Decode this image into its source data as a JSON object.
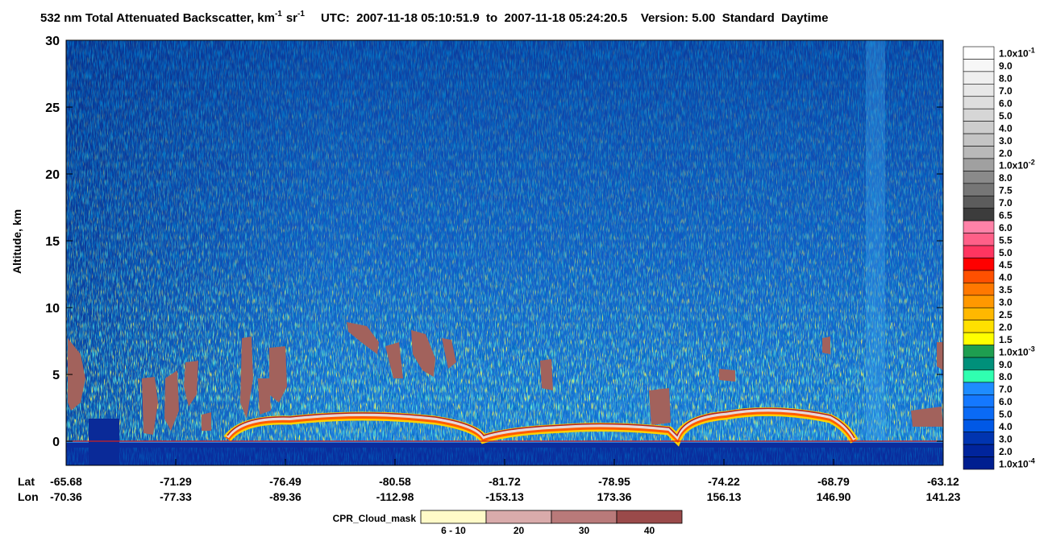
{
  "chart_data": {
    "type": "curtain",
    "title": {
      "text": "532 nm Total Attenuated Backscatter, km",
      "sup1": "-1",
      "sr": "sr",
      "sup2": "-1",
      "info": "UTC:  2007-11-18 05:10:51.9  to  2007-11-18 05:24:20.5    Version: 5.00  Standard  Daytime"
    },
    "ylabel": "Altitude, km",
    "ylim": [
      -1.8,
      30
    ],
    "yticks": [
      0,
      5,
      10,
      15,
      20,
      25,
      30
    ],
    "x_row_labels": [
      "Lat",
      "Lon"
    ],
    "lat": [
      -65.68,
      -71.29,
      -76.49,
      -80.58,
      -81.72,
      -78.95,
      -74.22,
      -68.79,
      -63.12
    ],
    "lon": [
      -70.36,
      -77.33,
      -89.36,
      -112.98,
      -153.13,
      173.36,
      156.13,
      {
        "value": 146.9,
        "label": "146.90"
      },
      141.23
    ],
    "colorbar": {
      "labels": [
        {
          "label": "1.0x10",
          "sup": "-1"
        },
        "9.0",
        "8.0",
        "7.0",
        "6.0",
        "5.0",
        "4.0",
        "3.0",
        "2.0",
        {
          "label": "1.0x10",
          "sup": "-2"
        },
        "8.0",
        "7.5",
        "7.0",
        "6.5",
        "6.0",
        "5.5",
        "5.0",
        "4.5",
        "4.0",
        "3.5",
        "3.0",
        "2.5",
        "2.0",
        "1.5",
        {
          "label": "1.0x10",
          "sup": "-3"
        },
        "9.0",
        "8.0",
        "7.0",
        "6.0",
        "5.0",
        "4.0",
        "3.0",
        "2.0",
        {
          "label": "1.0x10",
          "sup": "-4"
        }
      ],
      "colors": [
        "#ffffff",
        "#f7f7f7",
        "#efefef",
        "#e7e7e7",
        "#dedede",
        "#d6d6d6",
        "#cdcdcd",
        "#c4c4c4",
        "#b9b9b9",
        "#a0a0a0",
        "#8a8a8a",
        "#767676",
        "#5c5c5c",
        "#3c3c3c",
        "#ff82a8",
        "#ff6088",
        "#ff3560",
        "#ff0000",
        "#ff5000",
        "#ff7800",
        "#ff9800",
        "#ffb800",
        "#ffe000",
        "#ffff00",
        "#1e9e50",
        "#00907a",
        "#30ffb0",
        "#1e8cff",
        "#1478ff",
        "#0a6af5",
        "#0058e6",
        "#0034b0",
        "#00249c",
        "#001e90"
      ]
    },
    "cloud_mask": {
      "title": "CPR_Cloud_mask",
      "labels": [
        "6 - 10",
        "20",
        "30",
        "40"
      ],
      "colors": [
        "#fffac8",
        "#d9abab",
        "#b97a7a",
        "#9a4a4a"
      ]
    }
  }
}
